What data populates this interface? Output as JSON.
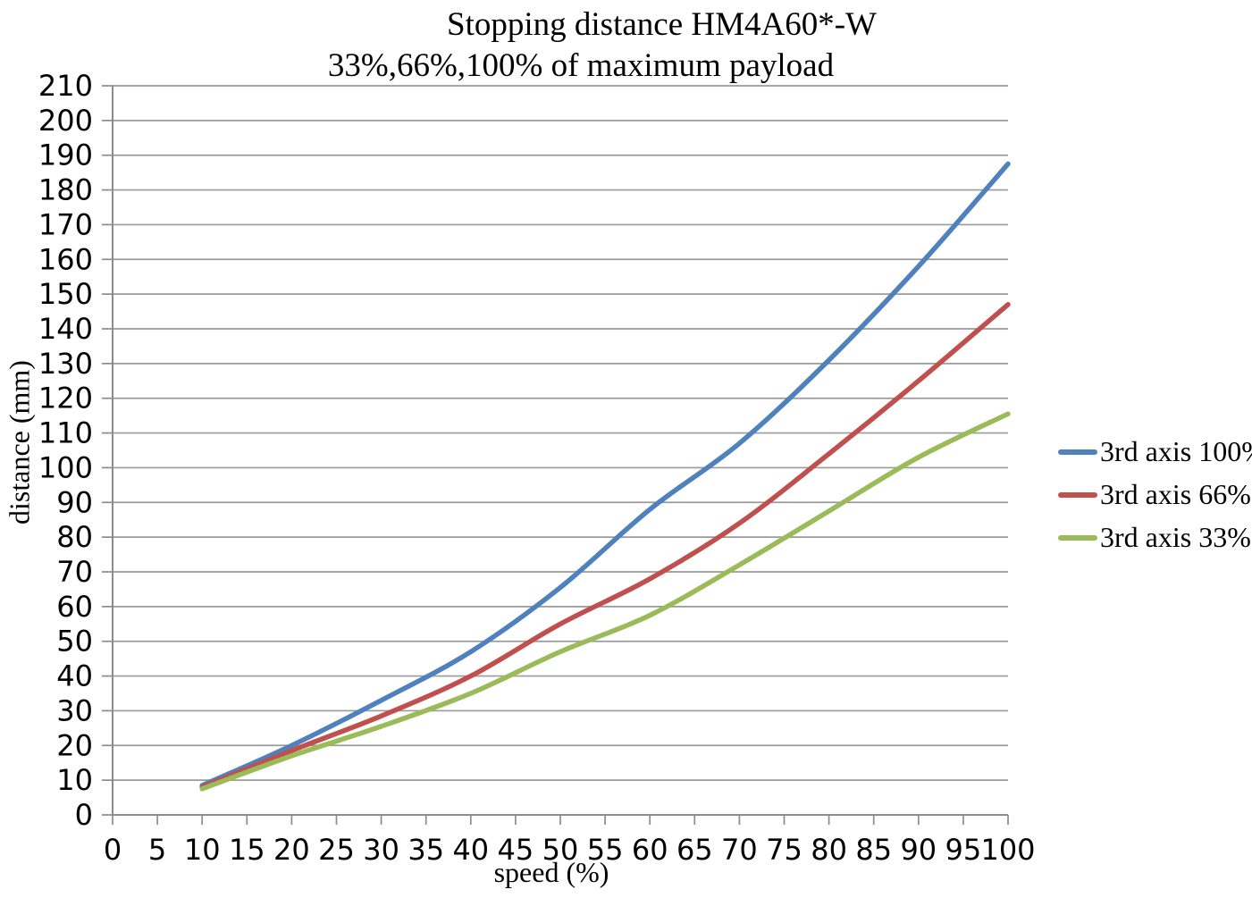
{
  "chart": {
    "title": "Stopping distance HM4A60*-W",
    "subtitle": "33%,66%,100% of maximum payload"
  },
  "chart_data": {
    "type": "line",
    "title": "Stopping distance HM4A60*-W",
    "subtitle": "33%,66%,100% of maximum payload",
    "xlabel": "speed (%)",
    "ylabel": "distance (mm)",
    "xlim": [
      0,
      100
    ],
    "ylim": [
      0,
      210
    ],
    "x_ticks": [
      0,
      5,
      10,
      15,
      20,
      25,
      30,
      35,
      40,
      45,
      50,
      55,
      60,
      65,
      70,
      75,
      80,
      85,
      90,
      95,
      100
    ],
    "y_ticks": [
      0,
      10,
      20,
      30,
      40,
      50,
      60,
      70,
      80,
      90,
      100,
      110,
      120,
      130,
      140,
      150,
      160,
      170,
      180,
      190,
      200,
      210
    ],
    "grid": "horizontal-gridlines-only",
    "legend_position": "right-center",
    "line_style": "smooth",
    "x": [
      10,
      20,
      30,
      40,
      50,
      60,
      70,
      80,
      90,
      100
    ],
    "series": [
      {
        "name": "3rd axis 100%",
        "color": "#4F81BD",
        "values": [
          8.5,
          20,
          33,
          47,
          65.5,
          88,
          107,
          131,
          158,
          187.5
        ]
      },
      {
        "name": "3rd axis 66%",
        "color": "#C0504D",
        "values": [
          8,
          18.5,
          28.5,
          40,
          55,
          68,
          84,
          104,
          125,
          147
        ]
      },
      {
        "name": "3rd axis 33%",
        "color": "#9BBB59",
        "values": [
          7.5,
          17,
          25.5,
          35,
          47,
          57.5,
          72,
          87.5,
          103,
          115.5
        ]
      }
    ],
    "colors": {
      "gridline": "#9A9A9A",
      "axis": "#8C8C8C",
      "text": "#000000",
      "background": "#FFFFFF"
    }
  }
}
